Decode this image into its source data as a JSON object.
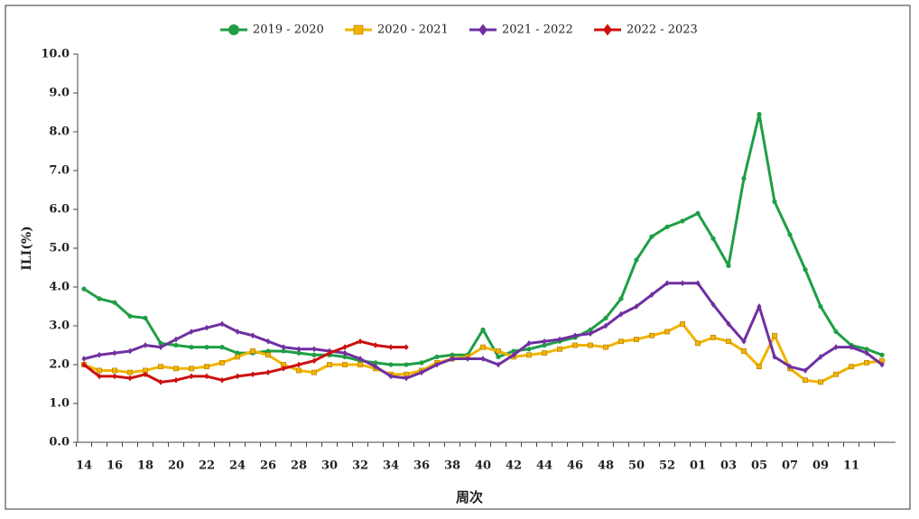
{
  "chart_data": {
    "type": "line",
    "xlabel": "周次",
    "ylabel": "ILI(%)",
    "categories": [
      "14",
      null,
      "16",
      null,
      "18",
      null,
      "20",
      null,
      "22",
      null,
      "24",
      null,
      "26",
      null,
      "28",
      null,
      "30",
      null,
      "32",
      null,
      "34",
      null,
      "36",
      null,
      "38",
      null,
      "40",
      null,
      "42",
      null,
      "44",
      null,
      "46",
      null,
      "48",
      null,
      "50",
      null,
      "52",
      null,
      "01",
      null,
      "03",
      null,
      "05",
      null,
      "07",
      null,
      "09",
      null,
      "11",
      null,
      null
    ],
    "ylim": [
      0,
      10
    ],
    "yticks": [
      {
        "value": 0,
        "label": "0.0"
      },
      {
        "value": 1,
        "label": "1.0"
      },
      {
        "value": 2,
        "label": "2.0"
      },
      {
        "value": 3,
        "label": "3.0"
      },
      {
        "value": 4,
        "label": "4.0"
      },
      {
        "value": 5,
        "label": "5.0"
      },
      {
        "value": 6,
        "label": "6.0"
      },
      {
        "value": 7,
        "label": "7.0"
      },
      {
        "value": 8,
        "label": "8.0"
      },
      {
        "value": 9,
        "label": "9.0"
      },
      {
        "value": 10,
        "label": "10.0"
      }
    ],
    "legend": "top",
    "series": [
      {
        "name": "2019 - 2020",
        "color": "#1f9e45",
        "marker": "circle",
        "values": [
          3.95,
          3.7,
          3.6,
          3.25,
          3.2,
          2.55,
          2.5,
          2.45,
          2.45,
          2.45,
          2.3,
          2.3,
          2.35,
          2.35,
          2.3,
          2.25,
          2.25,
          2.2,
          2.1,
          2.05,
          2.0,
          2.0,
          2.05,
          2.2,
          2.25,
          2.25,
          2.9,
          2.2,
          2.35,
          2.4,
          2.5,
          2.6,
          2.7,
          2.9,
          3.2,
          3.7,
          4.7,
          5.3,
          5.55,
          5.7,
          5.9,
          5.25,
          4.55,
          6.8,
          8.45,
          6.2,
          5.35,
          4.45,
          3.5,
          2.85,
          2.5,
          2.4,
          2.25
        ]
      },
      {
        "name": "2020 - 2021",
        "color": "#f0b400",
        "marker": "square",
        "values": [
          2.0,
          1.85,
          1.85,
          1.8,
          1.85,
          1.95,
          1.9,
          1.9,
          1.95,
          2.05,
          2.2,
          2.35,
          2.25,
          2.0,
          1.85,
          1.8,
          2.0,
          2.0,
          2.0,
          1.9,
          1.75,
          1.75,
          1.85,
          2.05,
          2.15,
          2.2,
          2.45,
          2.35,
          2.2,
          2.25,
          2.3,
          2.4,
          2.5,
          2.5,
          2.45,
          2.6,
          2.65,
          2.75,
          2.85,
          3.05,
          2.55,
          2.7,
          2.6,
          2.35,
          1.95,
          2.75,
          1.9,
          1.6,
          1.55,
          1.75,
          1.95,
          2.05,
          2.1
        ]
      },
      {
        "name": "2021 - 2022",
        "color": "#7030a0",
        "marker": "diamond",
        "values": [
          2.15,
          2.25,
          2.3,
          2.35,
          2.5,
          2.45,
          2.65,
          2.85,
          2.95,
          3.05,
          2.85,
          2.75,
          2.6,
          2.45,
          2.4,
          2.4,
          2.35,
          2.3,
          2.15,
          1.95,
          1.7,
          1.65,
          1.8,
          2.0,
          2.15,
          2.15,
          2.15,
          2.0,
          2.25,
          2.55,
          2.6,
          2.65,
          2.75,
          2.8,
          3.0,
          3.3,
          3.5,
          3.8,
          4.1,
          4.1,
          4.1,
          3.55,
          3.05,
          2.6,
          3.5,
          2.2,
          1.95,
          1.85,
          2.2,
          2.45,
          2.45,
          2.3,
          2.0
        ]
      },
      {
        "name": "2022 - 2023",
        "color": "#cc1010",
        "marker": "diamond",
        "values": [
          2.0,
          1.7,
          1.7,
          1.65,
          1.75,
          1.55,
          1.6,
          1.7,
          1.7,
          1.6,
          1.7,
          1.75,
          1.8,
          1.9,
          2.0,
          2.1,
          2.3,
          2.45,
          2.6,
          2.5,
          2.45,
          2.45,
          null,
          null,
          null,
          null,
          null,
          null,
          null,
          null,
          null,
          null,
          null,
          null,
          null,
          null,
          null,
          null,
          null,
          null,
          null,
          null,
          null,
          null,
          null,
          null,
          null,
          null,
          null,
          null,
          null,
          null,
          null
        ]
      }
    ]
  }
}
